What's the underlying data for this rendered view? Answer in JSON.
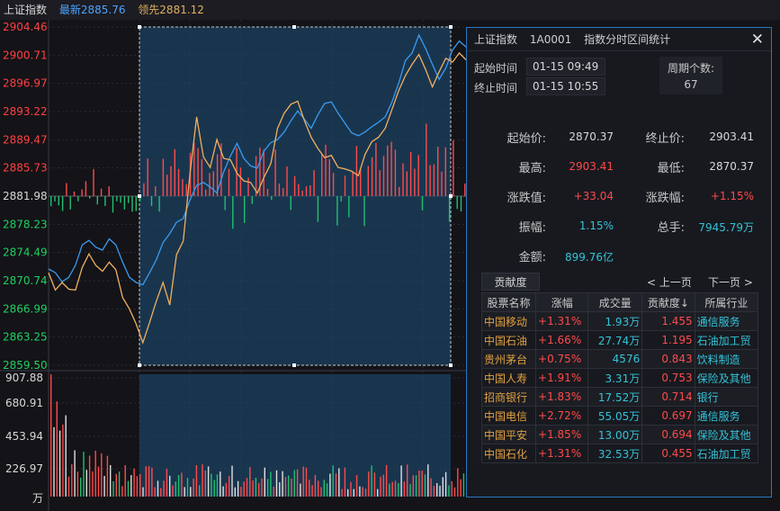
{
  "titlebar": {
    "name": "上证指数",
    "latest": "最新2885.76",
    "lead": "领先2881.12"
  },
  "price_axis": {
    "labels": [
      "2904.46",
      "2900.71",
      "2896.97",
      "2893.22",
      "2889.47",
      "2885.73",
      "2881.98",
      "2878.23",
      "2874.49",
      "2870.74",
      "2866.99",
      "2863.25",
      "2859.50"
    ],
    "colors": {
      "up": "#ff4040",
      "base": "#d8d8d8",
      "down": "#20d060"
    }
  },
  "volume_axis": {
    "labels": [
      "907.88",
      "680.91",
      "453.94",
      "226.97"
    ],
    "unit": "万"
  },
  "colors": {
    "index_line": "#3a9bf0",
    "lead_line": "#f0b060",
    "up": "#ff4a4a",
    "down": "#20c070",
    "selection": "#1c4260"
  },
  "chart_data": {
    "type": "line",
    "ylim": [
      2859.5,
      2904.46
    ],
    "base": 2881.98,
    "series": [
      {
        "name": "最新",
        "values": [
          2872.3,
          2871.8,
          2870.6,
          2871.2,
          2872.8,
          2875.5,
          2876.1,
          2875.2,
          2874.8,
          2876.3,
          2875.5,
          2873.2,
          2871.2,
          2870.5,
          2870.2,
          2871.8,
          2873.5,
          2875.8,
          2877.0,
          2878.5,
          2879.0,
          2881.5,
          2883.4,
          2883.8,
          2883.2,
          2882.4,
          2885.2,
          2887.3,
          2889.0,
          2887.0,
          2886.0,
          2885.7,
          2888.0,
          2889.1,
          2889.5,
          2890.5,
          2892.0,
          2893.3,
          2892.2,
          2891.0,
          2892.8,
          2894.3,
          2894.5,
          2893.0,
          2891.7,
          2890.4,
          2890.0,
          2890.5,
          2891.2,
          2891.8,
          2892.5,
          2894.5,
          2897.0,
          2900.0,
          2901.0,
          2903.4,
          2901.6,
          2899.5,
          2897.5,
          2899.0,
          2901.4,
          2902.6,
          2901.8
        ]
      },
      {
        "name": "领先",
        "values": [
          2871.8,
          2869.5,
          2870.5,
          2869.6,
          2869.5,
          2872.5,
          2874.3,
          2872.8,
          2872.0,
          2873.2,
          2872.2,
          2868.5,
          2867.0,
          2865.0,
          2862.5,
          2865.2,
          2868.0,
          2870.5,
          2867.5,
          2874.2,
          2876.0,
          2885.0,
          2892.5,
          2887.2,
          2885.8,
          2889.5,
          2887.0,
          2886.8,
          2885.0,
          2884.0,
          2883.8,
          2882.4,
          2884.5,
          2886.3,
          2891.0,
          2893.0,
          2894.2,
          2894.6,
          2892.0,
          2889.8,
          2888.3,
          2887.1,
          2887.4,
          2885.8,
          2885.6,
          2885.3,
          2884.7,
          2887.5,
          2889.2,
          2889.8,
          2891.0,
          2893.5,
          2896.0,
          2898.0,
          2899.5,
          2900.8,
          2898.8,
          2896.5,
          2898.5,
          2900.3,
          2899.8,
          2901.0,
          2900.1
        ]
      }
    ]
  },
  "panel": {
    "header": {
      "index": "上证指数",
      "code": "1A0001",
      "title": "指数分时区间统计"
    },
    "start_time_label": "起始时间",
    "start_time": "01-15 09:49",
    "end_time_label": "终止时间",
    "end_time": "01-15 10:55",
    "period_count_label": "周期个数:",
    "period_count": "67",
    "stats": {
      "start_price_label": "起始价:",
      "start_price": "2870.37",
      "end_price_label": "终止价:",
      "end_price": "2903.41",
      "high_label": "最高:",
      "high": "2903.41",
      "low_label": "最低:",
      "low": "2870.37",
      "change_label": "涨跌值:",
      "change": "+33.04",
      "change_pct_label": "涨跌幅:",
      "change_pct": "+1.15%",
      "amplitude_label": "振幅:",
      "amplitude": "1.15%",
      "total_hands_label": "总手:",
      "total_hands": "7945.79万",
      "amount_label": "金额:",
      "amount": "899.76亿"
    },
    "contrib_tab": "贡献度",
    "prev_page": "< 上一页",
    "next_page": "下一页 >",
    "table": {
      "headers": [
        "股票名称",
        "涨幅",
        "成交量",
        "贡献度↓",
        "所属行业"
      ],
      "rows": [
        [
          "中国移动",
          "+1.31%",
          "1.93万",
          "1.455",
          "通信服务"
        ],
        [
          "中国石油",
          "+1.66%",
          "27.74万",
          "1.195",
          "石油加工贸"
        ],
        [
          "贵州茅台",
          "+0.75%",
          "4576",
          "0.843",
          "饮料制造"
        ],
        [
          "中国人寿",
          "+1.91%",
          "3.31万",
          "0.753",
          "保险及其他"
        ],
        [
          "招商银行",
          "+1.83%",
          "17.52万",
          "0.714",
          "银行"
        ],
        [
          "中国电信",
          "+2.72%",
          "55.05万",
          "0.697",
          "通信服务"
        ],
        [
          "中国平安",
          "+1.85%",
          "13.00万",
          "0.694",
          "保险及其他"
        ],
        [
          "中国石化",
          "+1.31%",
          "32.53万",
          "0.455",
          "石油加工贸"
        ]
      ]
    }
  }
}
